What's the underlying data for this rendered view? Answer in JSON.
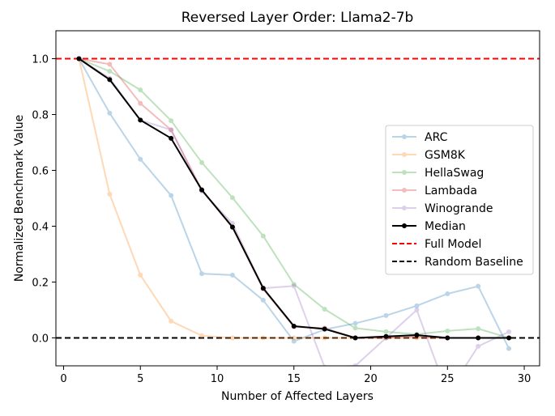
{
  "chart_data": {
    "type": "line",
    "title": "Reversed Layer Order: Llama2-7b",
    "xlabel": "Number of Affected Layers",
    "ylabel": "Normalized Benchmark Value",
    "xlim": [
      -0.5,
      31
    ],
    "ylim": [
      -0.1,
      1.1
    ],
    "xticks": [
      0,
      5,
      10,
      15,
      20,
      25,
      30
    ],
    "yticks": [
      0.0,
      0.2,
      0.4,
      0.6,
      0.8,
      1.0
    ],
    "xtick_labels": [
      "0",
      "5",
      "10",
      "15",
      "20",
      "25",
      "30"
    ],
    "ytick_labels": [
      "0.0",
      "0.2",
      "0.4",
      "0.6",
      "0.8",
      "1.0"
    ],
    "grid": false,
    "legend_position": "center-right",
    "series": [
      {
        "name": "ARC",
        "color": "#1f77b4",
        "alpha": 0.3,
        "x": [
          1,
          3,
          5,
          7,
          9,
          11,
          13,
          15,
          17,
          19,
          21,
          23,
          25,
          27,
          29
        ],
        "y": [
          1.0,
          0.805,
          0.64,
          0.51,
          0.23,
          0.225,
          0.135,
          -0.012,
          0.03,
          0.052,
          0.08,
          0.115,
          0.158,
          0.185,
          -0.038
        ]
      },
      {
        "name": "GSM8K",
        "color": "#ff7f0e",
        "alpha": 0.3,
        "x": [
          1,
          3,
          5,
          7,
          9,
          11,
          13,
          15,
          17,
          19,
          21,
          23,
          25,
          27,
          29
        ],
        "y": [
          1.0,
          0.515,
          0.225,
          0.06,
          0.008,
          0.0,
          0.0,
          0.0,
          0.0,
          0.0,
          0.0,
          0.0,
          0.0,
          0.0,
          0.0
        ]
      },
      {
        "name": "HellaSwag",
        "color": "#2ca02c",
        "alpha": 0.3,
        "x": [
          1,
          3,
          5,
          7,
          9,
          11,
          13,
          15,
          17,
          19,
          21,
          23,
          25,
          27,
          29
        ],
        "y": [
          1.0,
          0.955,
          0.888,
          0.778,
          0.628,
          0.502,
          0.365,
          0.192,
          0.103,
          0.035,
          0.022,
          0.013,
          0.025,
          0.033,
          0.0
        ]
      },
      {
        "name": "Lambada",
        "color": "#d62728",
        "alpha": 0.3,
        "x": [
          1,
          3,
          5,
          7,
          9,
          11,
          13,
          15,
          17,
          19,
          21,
          23,
          25,
          27,
          29
        ],
        "y": [
          1.0,
          0.98,
          0.84,
          0.745,
          0.53,
          0.395,
          0.175,
          0.04,
          0.035,
          0.0,
          0.0,
          0.005,
          0.0,
          0.0,
          0.0
        ]
      },
      {
        "name": "Winogrande",
        "color": "#9467bd",
        "alpha": 0.3,
        "x": [
          1,
          3,
          5,
          7,
          9,
          11,
          13,
          15,
          17,
          19,
          21,
          23,
          25,
          27,
          29
        ],
        "y": [
          1.0,
          0.93,
          0.78,
          0.745,
          0.525,
          0.41,
          0.178,
          0.186,
          -0.105,
          -0.1,
          0.0,
          0.1,
          -0.2,
          -0.03,
          0.022
        ]
      },
      {
        "name": "Median",
        "color": "#000000",
        "alpha": 1,
        "x": [
          1,
          3,
          5,
          7,
          9,
          11,
          13,
          15,
          17,
          19,
          21,
          23,
          25,
          27,
          29
        ],
        "y": [
          1.0,
          0.925,
          0.78,
          0.715,
          0.53,
          0.397,
          0.178,
          0.042,
          0.032,
          0.0,
          0.005,
          0.01,
          0.0,
          0.0,
          0.0
        ]
      }
    ],
    "reference_lines": [
      {
        "name": "Full Model",
        "y": 1.0,
        "color": "#ff0000",
        "style": "dashed"
      },
      {
        "name": "Random Baseline",
        "y": 0.0,
        "color": "#000000",
        "style": "dashed"
      }
    ]
  }
}
